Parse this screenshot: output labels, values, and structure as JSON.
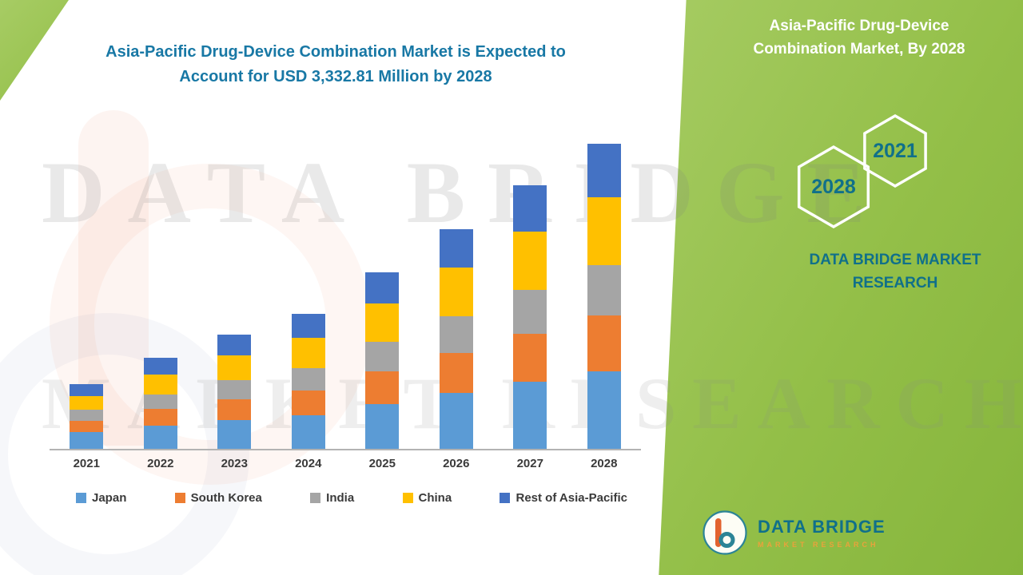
{
  "colors": {
    "title-color": "#1878a5",
    "panel-green-1": "#a7cc64",
    "panel-green-2": "#93bf48",
    "panel-green-3": "#86b53c",
    "teal": "#10708a",
    "orange": "#e9a23b",
    "axis": "#b3b3b3",
    "label": "#3a3a3a"
  },
  "watermark": {
    "line1": "DATA BRIDGE",
    "line2": "MARKET RESEARCH"
  },
  "side_panel": {
    "heading": "Asia-Pacific Drug-Device Combination Market, By 2028",
    "hexagon_back_label": "2028",
    "hexagon_front_label": "2021",
    "brand": "DATA BRIDGE MARKET RESEARCH"
  },
  "footer_logo": {
    "name": "DATA BRIDGE",
    "sub": "MARKET RESEARCH"
  },
  "chart_data": {
    "type": "bar",
    "stacked": true,
    "title": "Asia-Pacific Drug-Device Combination Market is Expected to Account for USD 3,332.81 Million by 2028",
    "unit": "USD Million",
    "categories": [
      "2021",
      "2022",
      "2023",
      "2024",
      "2025",
      "2026",
      "2027",
      "2028"
    ],
    "series": [
      {
        "name": "Japan",
        "color": "#5B9BD5",
        "values": [
          180,
          250,
          315,
          370,
          490,
          610,
          730,
          845
        ]
      },
      {
        "name": "South Korea",
        "color": "#ED7D31",
        "values": [
          130,
          185,
          230,
          270,
          355,
          440,
          530,
          615
        ]
      },
      {
        "name": "India",
        "color": "#A5A5A5",
        "values": [
          115,
          160,
          205,
          245,
          320,
          395,
          475,
          550
        ]
      },
      {
        "name": "China",
        "color": "#FFC000",
        "values": [
          155,
          220,
          275,
          325,
          425,
          530,
          635,
          735
        ]
      },
      {
        "name": "Rest of Asia-Pacific",
        "color": "#4472C4",
        "values": [
          130,
          175,
          220,
          260,
          340,
          420,
          505,
          587.81
        ]
      }
    ],
    "totals": [
      710,
      990,
      1245,
      1470,
      1930,
      2395,
      2875,
      3332.81
    ],
    "ylim": [
      0,
      3400
    ],
    "grid": false,
    "legend_position": "bottom",
    "values_estimated_from_pixels": true
  }
}
